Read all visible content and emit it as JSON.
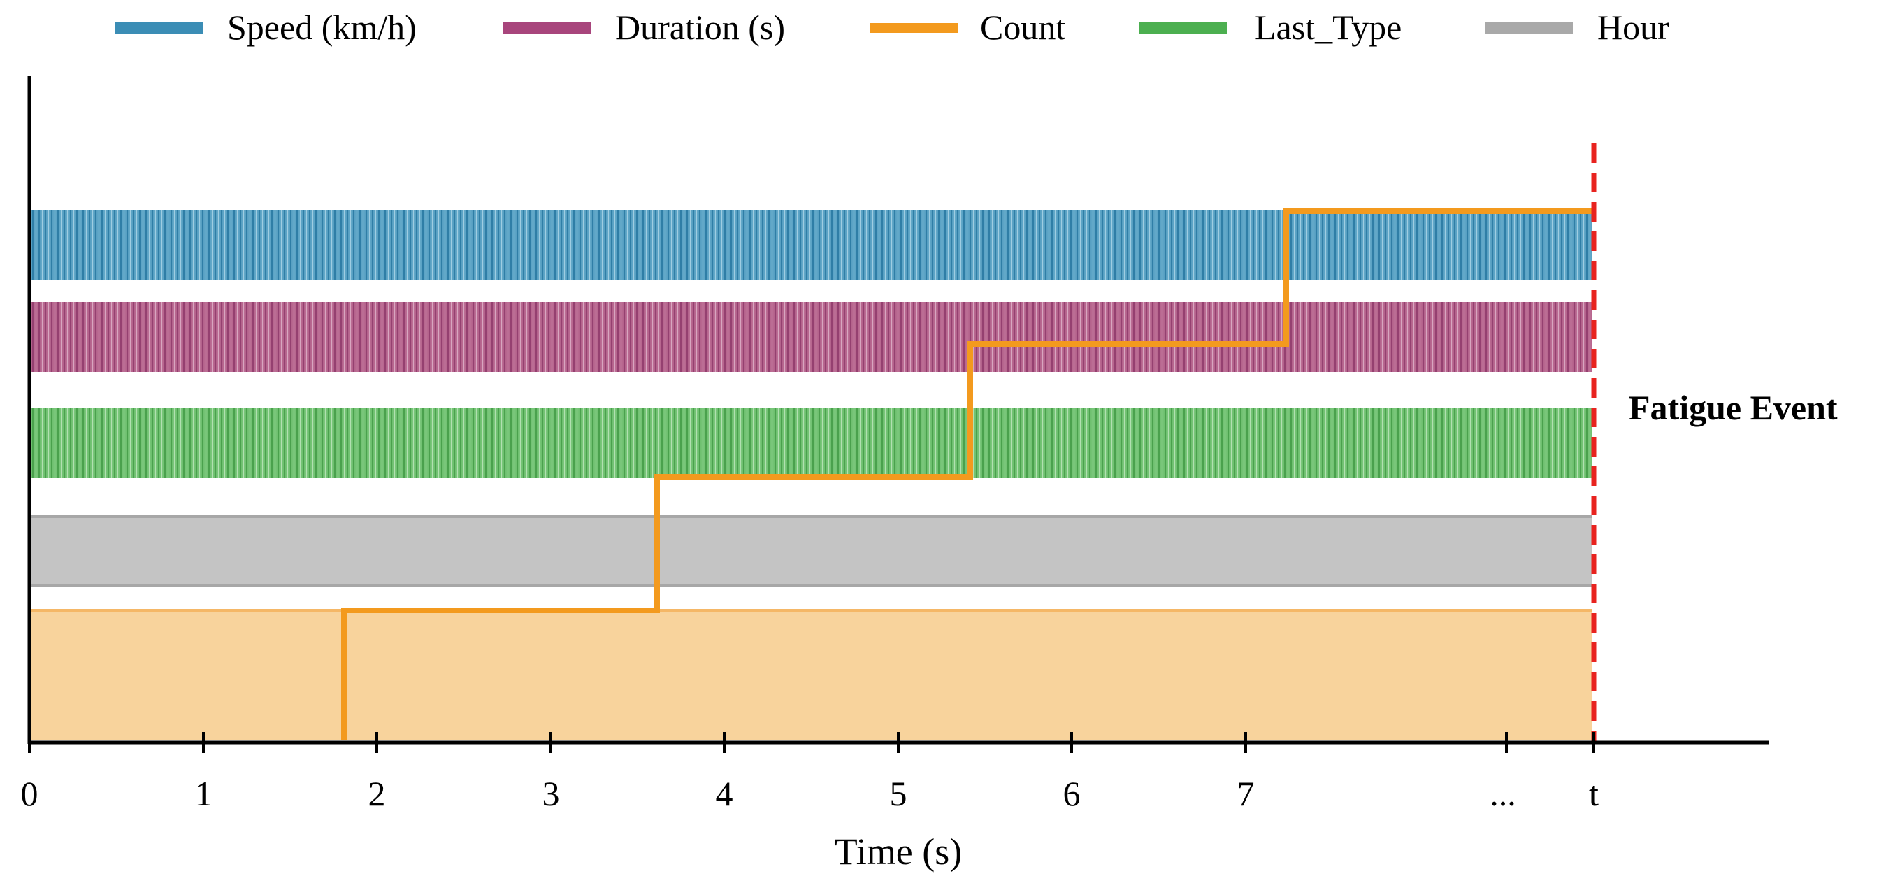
{
  "chart_data": {
    "type": "area",
    "xlabel": "Time (s)",
    "x_ticks": [
      "0",
      "1",
      "2",
      "3",
      "4",
      "5",
      "6",
      "7",
      "...",
      "t"
    ],
    "xlim": [
      0,
      9.5
    ],
    "legend": {
      "placement": "top",
      "entries": [
        {
          "name": "Speed (km/h)",
          "color": "#3b8db5"
        },
        {
          "name": "Duration (s)",
          "color": "#a8457c"
        },
        {
          "name": "Count",
          "color": "#f39a1e"
        },
        {
          "name": "Last_Type",
          "color": "#4caf50"
        },
        {
          "name": "Hour",
          "color": "#a9a9a9"
        }
      ]
    },
    "bands": [
      {
        "name": "Speed (km/h)",
        "start": 0,
        "end": 9,
        "color": "#3b8db5",
        "pattern": "vertical-hatch"
      },
      {
        "name": "Duration (s)",
        "start": 0,
        "end": 9,
        "color": "#a8457c",
        "pattern": "vertical-hatch"
      },
      {
        "name": "Last_Type",
        "start": 0,
        "end": 9,
        "color": "#4caf50",
        "pattern": "vertical-hatch"
      },
      {
        "name": "Hour",
        "start": 0,
        "end": 9,
        "color": "#a9a9a9",
        "pattern": "solid"
      },
      {
        "name": "Count",
        "start": 0,
        "end": 9,
        "color": "#f39a1e",
        "pattern": "light-fill"
      }
    ],
    "count_steps": {
      "name": "Count",
      "color": "#f39a1e",
      "x": [
        1.8,
        3.6,
        5.4,
        7.2,
        9
      ],
      "y": [
        1,
        2,
        3,
        4,
        4
      ]
    },
    "event": {
      "label": "Fatigue Event",
      "x": 9,
      "color": "#e8231f",
      "style": "dashed"
    },
    "grid": false
  }
}
